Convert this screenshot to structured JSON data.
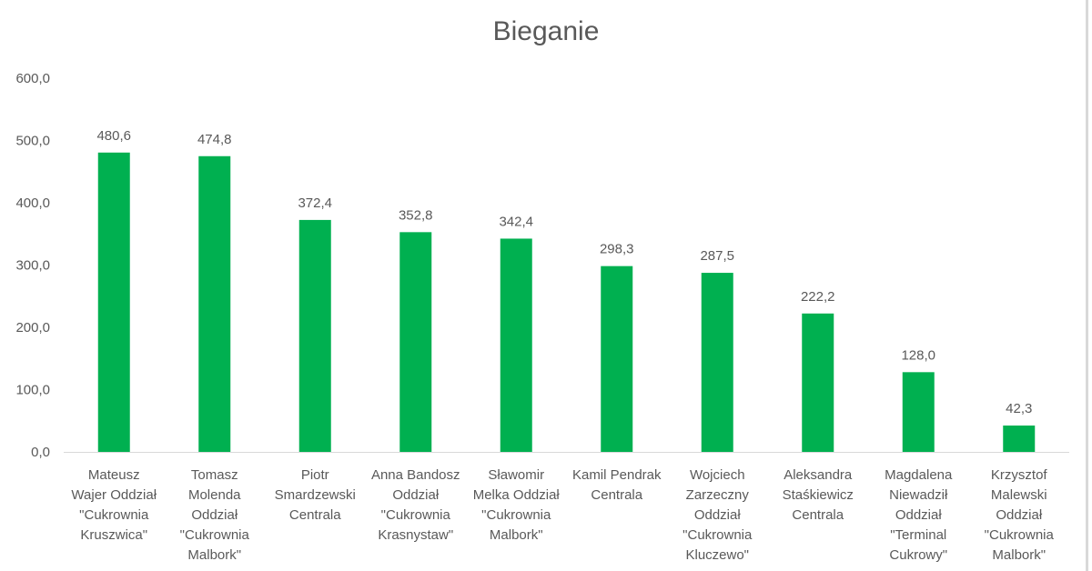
{
  "chart_data": {
    "type": "bar",
    "title": "Bieganie",
    "xlabel": "",
    "ylabel": "",
    "ylim": [
      0,
      600
    ],
    "ytick_values": [
      0,
      100,
      200,
      300,
      400,
      500,
      600
    ],
    "ytick_labels": [
      "0,0",
      "100,0",
      "200,0",
      "300,0",
      "400,0",
      "500,0",
      "600,0"
    ],
    "grid": false,
    "legend": "none",
    "bar_color": "#00b050",
    "categories": [
      [
        "Mateusz",
        "Wajer Oddział",
        "\"Cukrownia",
        "Kruszwica\""
      ],
      [
        "Tomasz",
        "Molenda",
        "Oddział",
        "\"Cukrownia",
        "Malbork\""
      ],
      [
        "Piotr",
        "Smardzewski",
        "Centrala"
      ],
      [
        "Anna Bandosz",
        "Oddział",
        "\"Cukrownia",
        "Krasnystaw\""
      ],
      [
        "Sławomir",
        "Melka Oddział",
        "\"Cukrownia",
        "Malbork\""
      ],
      [
        "Kamil Pendrak",
        "Centrala"
      ],
      [
        "Wojciech",
        "Zarzeczny",
        "Oddział",
        "\"Cukrownia",
        "Kluczewo\""
      ],
      [
        "Aleksandra",
        "Staśkiewicz",
        "Centrala"
      ],
      [
        "Magdalena",
        "Niewadził",
        "Oddział",
        "\"Terminal",
        "Cukrowy\""
      ],
      [
        "Krzysztof",
        "Malewski",
        "Oddział",
        "\"Cukrownia",
        "Malbork\""
      ]
    ],
    "values": [
      480.6,
      474.8,
      372.4,
      352.8,
      342.4,
      298.3,
      287.5,
      222.2,
      128.0,
      42.3
    ],
    "value_labels": [
      "480,6",
      "474,8",
      "372,4",
      "352,8",
      "342,4",
      "298,3",
      "287,5",
      "222,2",
      "128,0",
      "42,3"
    ]
  }
}
